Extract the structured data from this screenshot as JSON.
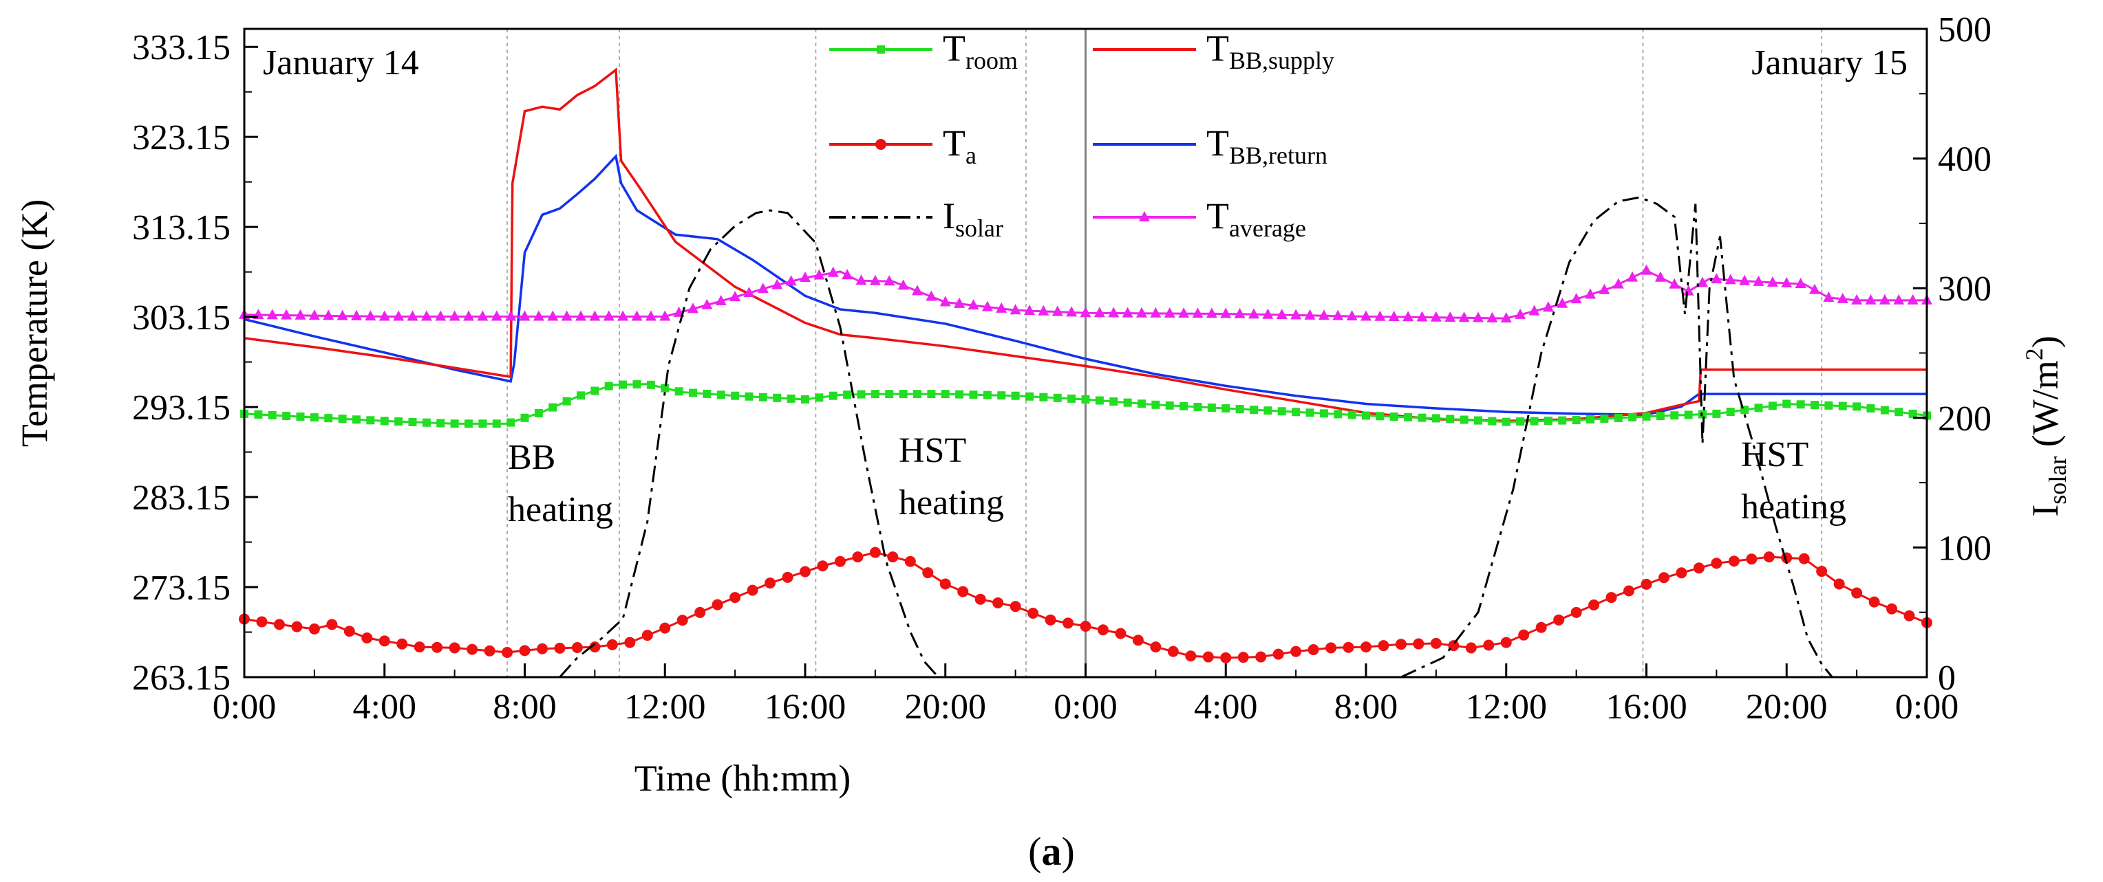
{
  "chart_data": {
    "type": "line",
    "panel_label": "(a)",
    "panel_label_letter": "a",
    "xlabel": "Time (hh:mm)",
    "ylabel": "Temperature (K)",
    "y2label_main": "I",
    "y2label_sub": "solar",
    "y2label_unit": " (W/m",
    "y2label_sup": "2",
    "y2label_close": ")",
    "xlim": [
      0,
      48
    ],
    "ylim": [
      263.15,
      335.15
    ],
    "y2lim": [
      0,
      500
    ],
    "x_ticks": [
      0,
      4,
      8,
      12,
      16,
      20,
      24,
      28,
      32,
      36,
      40,
      44,
      48
    ],
    "x_tick_labels": [
      "0:00",
      "4:00",
      "8:00",
      "12:00",
      "16:00",
      "20:00",
      "0:00",
      "4:00",
      "8:00",
      "12:00",
      "16:00",
      "20:00",
      "0:00"
    ],
    "y_ticks": [
      263.15,
      273.15,
      283.15,
      293.15,
      303.15,
      313.15,
      323.15,
      333.15
    ],
    "y_tick_labels": [
      "263.15",
      "273.15",
      "283.15",
      "293.15",
      "303.15",
      "313.15",
      "323.15",
      "333.15"
    ],
    "y2_ticks": [
      0,
      100,
      200,
      300,
      400,
      500
    ],
    "y2_tick_labels": [
      "0",
      "100",
      "200",
      "300",
      "400",
      "500"
    ],
    "day_divider_x": 24,
    "phase_lines_x": [
      7.5,
      10.7,
      16.3,
      22.3,
      39.9,
      45.0
    ],
    "annotations": [
      {
        "id": "day1",
        "text": "January 14"
      },
      {
        "id": "day2",
        "text": "January 15"
      },
      {
        "id": "bb1",
        "text": "BB"
      },
      {
        "id": "bb2",
        "text": "heating"
      },
      {
        "id": "hst1a",
        "text": "HST"
      },
      {
        "id": "hst1b",
        "text": "heating"
      },
      {
        "id": "hst2a",
        "text": "HST"
      },
      {
        "id": "hst2b",
        "text": "heating"
      }
    ],
    "series": [
      {
        "id": "troom",
        "name": "T",
        "sub": "room",
        "color": "#22dd22",
        "marker": "square",
        "axis": "left",
        "dash": "",
        "x": [
          0,
          2,
          4,
          6,
          7.5,
          8.5,
          9.5,
          10.5,
          11.5,
          12.5,
          14,
          16,
          17,
          18,
          20,
          22,
          24,
          26,
          28,
          30,
          32,
          34,
          36,
          38,
          40,
          42,
          44,
          46,
          48
        ],
        "y": [
          292.4,
          292.0,
          291.6,
          291.3,
          291.3,
          292.6,
          294.3,
          295.6,
          295.7,
          294.8,
          294.4,
          294.0,
          294.5,
          294.6,
          294.6,
          294.4,
          294.0,
          293.4,
          293.0,
          292.6,
          292.2,
          291.9,
          291.5,
          291.7,
          292.1,
          292.4,
          293.5,
          293.2,
          292.2
        ]
      },
      {
        "id": "ta",
        "name": "T",
        "sub": "a",
        "color": "#ee1111",
        "marker": "circle",
        "axis": "left",
        "dash": "",
        "x": [
          0,
          1,
          2,
          2.5,
          3.5,
          5,
          6,
          7.5,
          8.5,
          10,
          11,
          12,
          13.5,
          15,
          16.5,
          18,
          19,
          20,
          21,
          22,
          23,
          24,
          25,
          26,
          27,
          28,
          29,
          30,
          31,
          32,
          33,
          34,
          35,
          36,
          37.5,
          39,
          40.5,
          42,
          43.5,
          44.5,
          45.5,
          46.5,
          48
        ],
        "y": [
          269.6,
          269.0,
          268.5,
          269.0,
          267.5,
          266.5,
          266.4,
          265.9,
          266.3,
          266.5,
          267.0,
          268.6,
          271.2,
          273.6,
          275.5,
          277.0,
          276.0,
          273.5,
          271.8,
          271.0,
          269.5,
          268.8,
          268.0,
          266.5,
          265.5,
          265.3,
          265.4,
          266.0,
          266.4,
          266.5,
          266.8,
          266.9,
          266.4,
          267.0,
          269.5,
          272.0,
          274.2,
          275.8,
          276.5,
          276.3,
          273.5,
          271.5,
          269.2
        ]
      },
      {
        "id": "isolar",
        "name": "I",
        "sub": "solar",
        "color": "#000000",
        "marker": "none",
        "axis": "right",
        "dash": "24 9 5 9",
        "x": [
          9.0,
          9.5,
          10.2,
          10.8,
          11.5,
          12.1,
          12.7,
          13.3,
          14.0,
          14.6,
          15.0,
          15.5,
          16.3,
          17.0,
          17.7,
          18.3,
          19.0,
          19.4,
          19.8,
          33.0,
          34.2,
          35.2,
          36.2,
          37.0,
          37.8,
          38.5,
          39.2,
          39.8,
          40.3,
          40.8,
          41.1,
          41.4,
          41.6,
          41.8,
          42.1,
          42.5,
          43.1,
          43.7,
          44.2,
          44.6,
          45.0,
          45.3
        ],
        "y": [
          0,
          15,
          30,
          45,
          120,
          240,
          300,
          330,
          348,
          358,
          360,
          358,
          335,
          270,
          170,
          90,
          35,
          12,
          0,
          0,
          15,
          50,
          145,
          250,
          320,
          352,
          367,
          370,
          365,
          355,
          280,
          365,
          180,
          300,
          340,
          230,
          175,
          115,
          70,
          30,
          10,
          0
        ]
      },
      {
        "id": "tsupply",
        "name": "T",
        "sub": "BB,supply",
        "color": "#ee1111",
        "marker": "none",
        "axis": "left",
        "dash": "",
        "x": [
          0,
          2,
          4,
          6,
          7.6,
          7.65,
          8.0,
          8.5,
          9.0,
          9.5,
          10.0,
          10.6,
          10.75,
          11.3,
          12.3,
          14.0,
          16.0,
          17.0,
          18.0,
          20.0,
          22.0,
          24.0,
          26.0,
          28.0,
          30.0,
          32.0,
          34.0,
          36.0,
          38.0,
          40.0,
          41.0,
          41.5,
          41.55,
          48.0
        ],
        "y": [
          300.8,
          299.8,
          298.7,
          297.5,
          296.5,
          318.0,
          326.0,
          326.5,
          326.2,
          327.8,
          328.8,
          330.6,
          320.5,
          317.4,
          311.5,
          306.5,
          302.5,
          301.2,
          300.8,
          299.9,
          298.8,
          297.7,
          296.5,
          295.1,
          293.8,
          292.5,
          291.8,
          291.6,
          291.8,
          292.5,
          293.4,
          293.8,
          297.3,
          297.3
        ]
      },
      {
        "id": "treturn",
        "name": "T",
        "sub": "BB,return",
        "color": "#1133ee",
        "marker": "none",
        "axis": "left",
        "dash": "",
        "x": [
          0,
          2,
          4,
          6,
          7.6,
          7.7,
          8.0,
          8.5,
          9.0,
          9.5,
          10.0,
          10.6,
          10.75,
          11.2,
          12.3,
          13.5,
          14.5,
          16.0,
          17.0,
          18.0,
          20.0,
          22.0,
          24.0,
          26.0,
          28.0,
          30.0,
          32.0,
          34.0,
          36.0,
          38.0,
          40.0,
          41.0,
          41.5,
          48.0
        ],
        "y": [
          302.9,
          301.0,
          299.2,
          297.3,
          296.0,
          298.0,
          310.3,
          314.5,
          315.2,
          316.8,
          318.5,
          321.0,
          318.0,
          315.0,
          312.3,
          311.8,
          309.5,
          305.5,
          304.0,
          303.6,
          302.4,
          300.5,
          298.5,
          296.8,
          295.5,
          294.4,
          293.5,
          293.0,
          292.6,
          292.4,
          292.3,
          293.2,
          294.6,
          294.6
        ]
      },
      {
        "id": "taverage",
        "name": "T",
        "sub": "average",
        "color": "#ee22ee",
        "marker": "triangle",
        "axis": "left",
        "dash": "",
        "x": [
          0,
          4,
          8,
          12,
          13.5,
          15,
          16,
          17,
          17.5,
          18.5,
          20,
          22,
          24,
          28,
          32,
          36,
          37.5,
          39,
          40,
          41.2,
          41.8,
          43,
          44.5,
          45.2,
          46,
          48
        ],
        "y": [
          303.4,
          303.2,
          303.2,
          303.2,
          304.8,
          306.5,
          307.5,
          308.2,
          307.2,
          307.1,
          304.8,
          303.9,
          303.6,
          303.5,
          303.2,
          303.0,
          304.5,
          306.4,
          308.3,
          306.0,
          307.4,
          307.1,
          306.8,
          305.3,
          305.0,
          305.0
        ]
      }
    ]
  }
}
